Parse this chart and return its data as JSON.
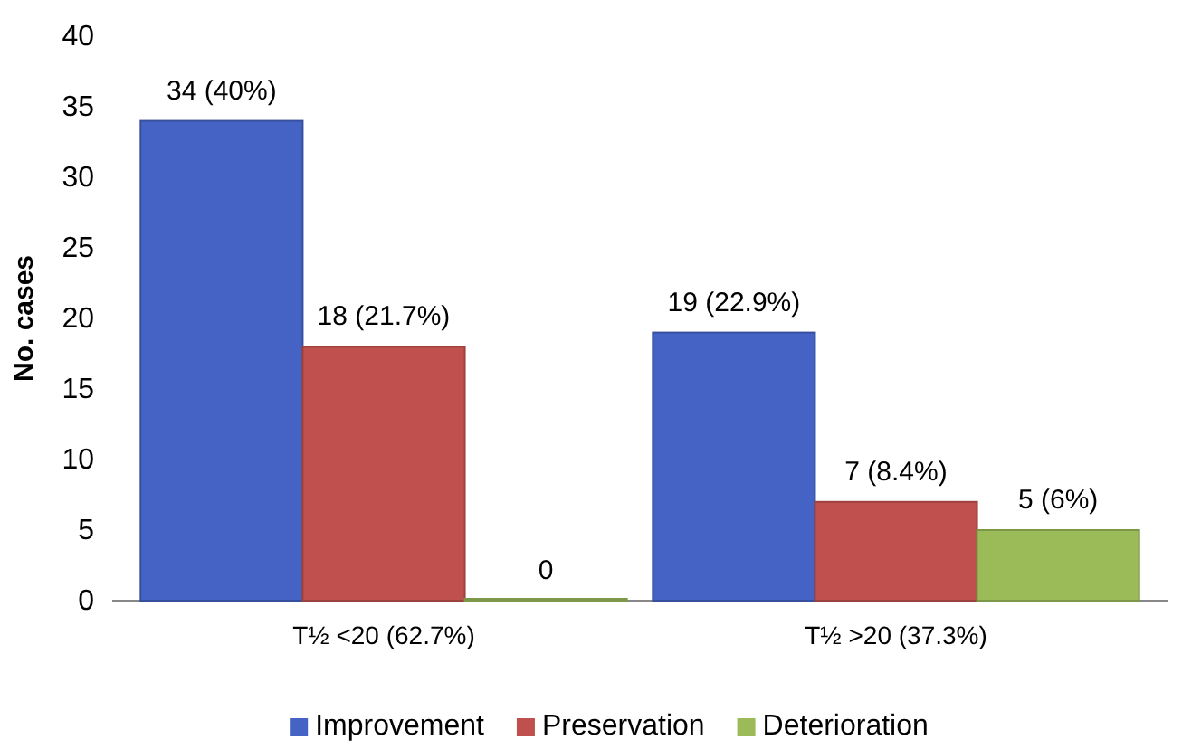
{
  "chart_data": {
    "type": "bar",
    "ylabel": "No. cases",
    "categories": [
      "T½ <20 (62.7%)",
      "T½ >20 (37.3%)"
    ],
    "series": [
      {
        "name": "Improvement",
        "color": "#4463c4",
        "values": [
          34,
          19
        ],
        "value_labels": [
          "34 (40%)",
          "19 (22.9%)"
        ]
      },
      {
        "name": "Preservation",
        "color": "#c0504d",
        "values": [
          18,
          7
        ],
        "value_labels": [
          "18 (21.7%)",
          "7 (8.4%)"
        ]
      },
      {
        "name": "Deterioration",
        "color": "#9bbb59",
        "values": [
          0,
          5
        ],
        "value_labels": [
          "0",
          "5 (6%)"
        ]
      }
    ],
    "ylim": [
      0,
      40
    ],
    "yticks": [
      0,
      5,
      10,
      15,
      20,
      25,
      30,
      35,
      40
    ],
    "grid": false,
    "legend": "bottom"
  }
}
